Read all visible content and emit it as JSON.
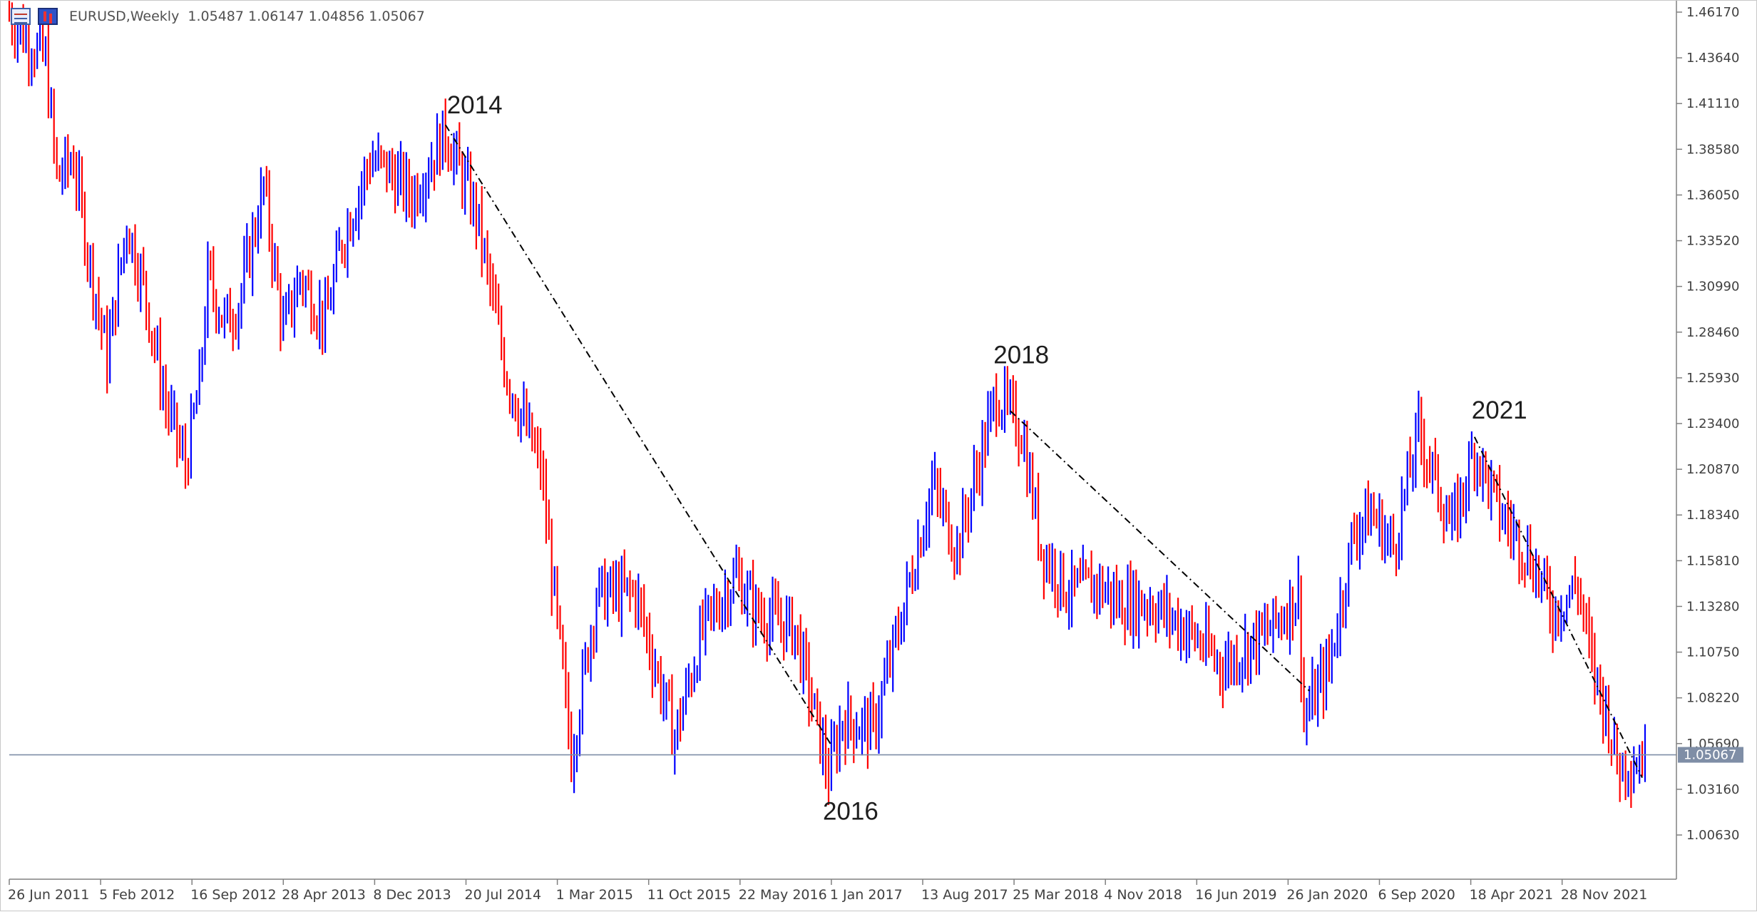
{
  "window": {
    "symbol_line": "EURUSD,Weekly  1.05487 1.06147 1.04856 1.05067",
    "symbol": "EURUSD",
    "timeframe": "Weekly",
    "ohlc": {
      "open": 1.05487,
      "high": 1.06147,
      "low": 1.04856,
      "close": 1.05067
    }
  },
  "colors": {
    "bull_bar": "#0000ff",
    "bear_bar": "#ff0000",
    "price_line": "#7f8ea6",
    "price_label_bg": "#7f8ea6",
    "trend_line": "#000000",
    "axis": "#808080"
  },
  "chart_data": {
    "type": "ohlc-bar",
    "title": "EURUSD,Weekly",
    "ylim": [
      1.0063,
      1.4617
    ],
    "y_ticks": [
      "1.46170",
      "1.43640",
      "1.41110",
      "1.38580",
      "1.36050",
      "1.33520",
      "1.30990",
      "1.28460",
      "1.25930",
      "1.23400",
      "1.20870",
      "1.18340",
      "1.15810",
      "1.13280",
      "1.10750",
      "1.08220",
      "1.05690",
      "1.03160",
      "1.00630"
    ],
    "x_ticks": [
      "26 Jun 2011",
      "5 Feb 2012",
      "16 Sep 2012",
      "28 Apr 2013",
      "8 Dec 2013",
      "20 Jul 2014",
      "1 Mar 2015",
      "11 Oct 2015",
      "22 May 2016",
      "1 Jan 2017",
      "13 Aug 2017",
      "25 Mar 2018",
      "4 Nov 2018",
      "16 Jun 2019",
      "26 Jan 2020",
      "6 Sep 2020",
      "18 Apr 2021",
      "28 Nov 2021"
    ],
    "current_price": 1.05067,
    "current_price_label": "1.05067",
    "annotations": [
      {
        "text": "2014",
        "date": "2014-05-04",
        "price": 1.3993
      },
      {
        "text": "2016",
        "date": "2016-12-18",
        "price": 1.0354
      },
      {
        "text": "2018",
        "date": "2018-02-11",
        "price": 1.2556
      },
      {
        "text": "2021",
        "date": "2021-05-23",
        "price": 1.2266
      }
    ],
    "trendlines": [
      {
        "from": {
          "date": "2014-05-04",
          "price": 1.3993
        },
        "to": {
          "date": "2016-12-25",
          "price": 1.056
        }
      },
      {
        "from": {
          "date": "2018-03-18",
          "price": 1.241
        },
        "to": {
          "date": "2020-04-05",
          "price": 1.086
        }
      },
      {
        "from": {
          "date": "2021-05-23",
          "price": 1.2266
        },
        "to": {
          "date": "2022-07-17",
          "price": 1.038
        }
      }
    ],
    "close_path": [
      [
        "2011-05-08",
        1.46
      ],
      [
        "2011-06-26",
        1.446
      ],
      [
        "2011-08-07",
        1.435
      ],
      [
        "2011-09-04",
        1.37
      ],
      [
        "2011-10-16",
        1.38
      ],
      [
        "2011-11-20",
        1.33
      ],
      [
        "2012-01-08",
        1.27
      ],
      [
        "2012-02-26",
        1.345
      ],
      [
        "2012-04-08",
        1.31
      ],
      [
        "2012-06-03",
        1.245
      ],
      [
        "2012-07-22",
        1.21
      ],
      [
        "2012-08-26",
        1.255
      ],
      [
        "2012-09-16",
        1.315
      ],
      [
        "2012-10-28",
        1.29
      ],
      [
        "2012-12-02",
        1.3
      ],
      [
        "2013-02-03",
        1.365
      ],
      [
        "2013-03-24",
        1.285
      ],
      [
        "2013-05-05",
        1.315
      ],
      [
        "2013-07-07",
        1.29
      ],
      [
        "2013-08-18",
        1.335
      ],
      [
        "2013-10-27",
        1.38
      ],
      [
        "2013-12-08",
        1.375
      ],
      [
        "2014-02-09",
        1.36
      ],
      [
        "2014-05-04",
        1.395
      ],
      [
        "2014-07-20",
        1.35
      ],
      [
        "2014-10-05",
        1.26
      ],
      [
        "2014-12-28",
        1.21
      ],
      [
        "2015-03-15",
        1.05
      ],
      [
        "2015-05-17",
        1.14
      ],
      [
        "2015-08-23",
        1.14
      ],
      [
        "2015-11-29",
        1.06
      ],
      [
        "2016-02-07",
        1.12
      ],
      [
        "2016-05-01",
        1.15
      ],
      [
        "2016-06-19",
        1.13
      ],
      [
        "2016-09-25",
        1.12
      ],
      [
        "2016-12-18",
        1.04
      ],
      [
        "2017-01-22",
        1.07
      ],
      [
        "2017-04-09",
        1.065
      ],
      [
        "2017-06-11",
        1.12
      ],
      [
        "2017-09-03",
        1.2
      ],
      [
        "2017-11-05",
        1.165
      ],
      [
        "2018-02-11",
        1.25
      ],
      [
        "2018-04-15",
        1.23
      ],
      [
        "2018-06-03",
        1.165
      ],
      [
        "2018-08-12",
        1.14
      ],
      [
        "2018-10-21",
        1.145
      ],
      [
        "2018-12-16",
        1.135
      ],
      [
        "2019-03-03",
        1.135
      ],
      [
        "2019-06-02",
        1.12
      ],
      [
        "2019-09-01",
        1.1
      ],
      [
        "2019-12-29",
        1.12
      ],
      [
        "2020-03-08",
        1.14
      ],
      [
        "2020-03-22",
        1.07
      ],
      [
        "2020-05-24",
        1.1
      ],
      [
        "2020-07-26",
        1.175
      ],
      [
        "2020-09-06",
        1.185
      ],
      [
        "2020-11-01",
        1.165
      ],
      [
        "2021-01-03",
        1.23
      ],
      [
        "2021-03-28",
        1.175
      ],
      [
        "2021-05-23",
        1.22
      ],
      [
        "2021-07-25",
        1.185
      ],
      [
        "2021-10-10",
        1.16
      ],
      [
        "2021-12-05",
        1.13
      ],
      [
        "2022-02-06",
        1.145
      ],
      [
        "2022-03-13",
        1.1
      ],
      [
        "2022-04-24",
        1.07
      ],
      [
        "2022-05-15",
        1.045
      ],
      [
        "2022-07-03",
        1.048
      ],
      [
        "2022-07-17",
        1.0507
      ]
    ]
  }
}
